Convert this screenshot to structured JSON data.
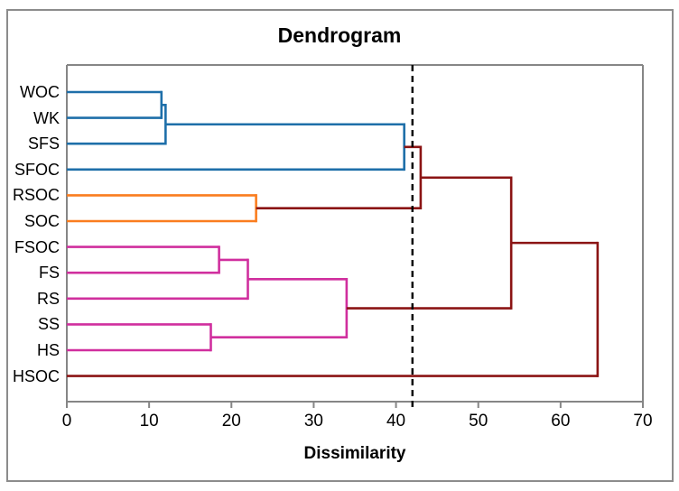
{
  "figure": {
    "title": "Dendrogram",
    "xlabel": "Dissimilarity"
  },
  "chart_data": {
    "type": "dendrogram",
    "orientation": "horizontal",
    "title": "Dendrogram",
    "xlabel": "Dissimilarity",
    "xlim": [
      0,
      70
    ],
    "xticks": [
      0,
      10,
      20,
      30,
      40,
      50,
      60,
      70
    ],
    "grid": false,
    "leaves": [
      "WOC",
      "WK",
      "SFS",
      "SFOC",
      "RSOC",
      "SOC",
      "FSOC",
      "FS",
      "RS",
      "SS",
      "HS",
      "HSOC"
    ],
    "cluster_colors": {
      "c1": "#1E6FA9",
      "c2": "#FA7D1F",
      "c3": "#D02F9E",
      "trunk": "#8B1414"
    },
    "merges": [
      {
        "id": "n1",
        "a": "WOC",
        "b": "WK",
        "dist": 11.5,
        "color": "c1"
      },
      {
        "id": "n2",
        "a": "n1",
        "b": "SFS",
        "dist": 12,
        "color": "c1"
      },
      {
        "id": "n3",
        "a": "n2",
        "b": "SFOC",
        "dist": 41,
        "color": "c1"
      },
      {
        "id": "n4",
        "a": "RSOC",
        "b": "SOC",
        "dist": 23,
        "color": "c2"
      },
      {
        "id": "n5",
        "a": "n3",
        "b": "n4",
        "dist": 43,
        "color": "trunk"
      },
      {
        "id": "n6",
        "a": "FSOC",
        "b": "FS",
        "dist": 18.5,
        "color": "c3"
      },
      {
        "id": "n7",
        "a": "n6",
        "b": "RS",
        "dist": 22,
        "color": "c3"
      },
      {
        "id": "n8",
        "a": "SS",
        "b": "HS",
        "dist": 17.5,
        "color": "c3"
      },
      {
        "id": "n9",
        "a": "n7",
        "b": "n8",
        "dist": 34,
        "color": "c3"
      },
      {
        "id": "n10",
        "a": "n5",
        "b": "n9",
        "dist": 54,
        "color": "trunk"
      },
      {
        "id": "n11",
        "a": "n10",
        "b": "HSOC",
        "dist": 64.5,
        "color": "trunk"
      }
    ],
    "cutoff_line": {
      "x": 42,
      "style": "dashed",
      "color": "#000000"
    },
    "axis_color": "#868686",
    "background_color": "#FFFFFF"
  }
}
